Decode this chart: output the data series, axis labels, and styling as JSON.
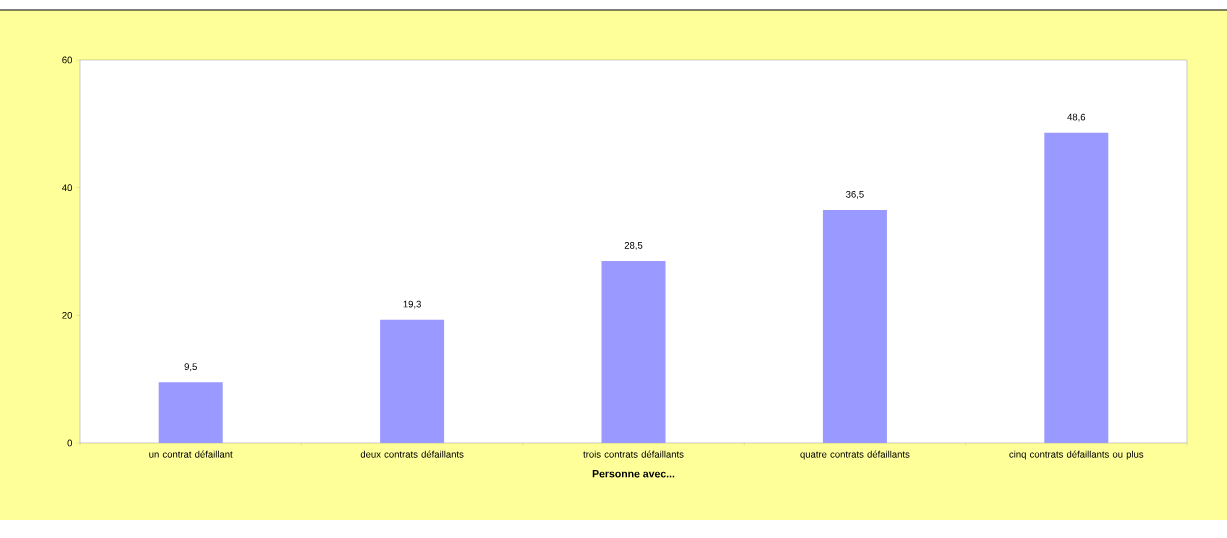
{
  "chart_data": {
    "type": "bar",
    "xlabel": "Personne avec...",
    "categories": [
      "un contrat défaillant",
      "deux contrats défaillants",
      "trois contrats défaillants",
      "quatre contrats défaillants",
      "cinq contrats défaillants ou plus"
    ],
    "values": [
      9.5,
      19.3,
      28.5,
      36.5,
      48.6
    ],
    "value_labels": [
      "9,5",
      "19,3",
      "28,5",
      "36,5",
      "48,6"
    ],
    "color": "#9999ff",
    "ylim": [
      0,
      60
    ],
    "yticks": [
      0,
      20,
      40,
      60
    ]
  }
}
